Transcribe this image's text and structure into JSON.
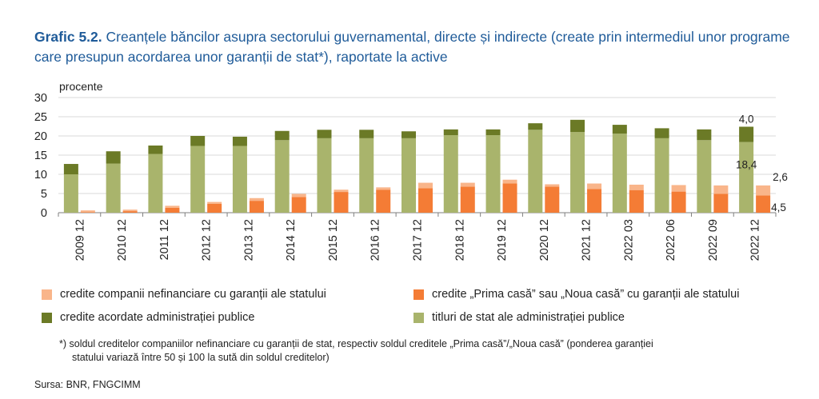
{
  "title": {
    "label": "Grafic 5.2.",
    "text": "Creanțele băncilor asupra sectorului guvernamental, directe și indirecte (create prin intermediul unor programe care presupun acordarea unor garanții de stat*), raportate la active"
  },
  "unit_label": "procente",
  "chart_data": {
    "type": "bar",
    "stacked": "two stacks per period",
    "categories": [
      "2009 12",
      "2010 12",
      "2011 12",
      "2012 12",
      "2013 12",
      "2014 12",
      "2015 12",
      "2016 12",
      "2017 12",
      "2018 12",
      "2019 12",
      "2020 12",
      "2021 12",
      "2022 03",
      "2022 06",
      "2022 09",
      "2022 12"
    ],
    "ylim": [
      0,
      30
    ],
    "yticks": [
      0,
      5,
      10,
      15,
      20,
      25,
      30
    ],
    "grid": true,
    "legend_position": "bottom",
    "series": [
      {
        "name": "titluri de stat ale administrației publice",
        "stack": "public",
        "color": "#a9b46c",
        "values": [
          10.0,
          12.8,
          15.3,
          17.4,
          17.4,
          18.9,
          19.4,
          19.4,
          19.4,
          20.2,
          20.2,
          21.6,
          21.0,
          20.6,
          19.4,
          18.9,
          18.4
        ]
      },
      {
        "name": "credite acordate administrației publice",
        "stack": "public",
        "color": "#6b7a26",
        "values": [
          2.7,
          3.2,
          2.2,
          2.6,
          2.4,
          2.4,
          2.2,
          2.2,
          1.8,
          1.5,
          1.5,
          1.7,
          3.2,
          2.3,
          2.6,
          2.8,
          4.0
        ]
      },
      {
        "name": "credite „Prima casă” sau „Noua casă” cu garanții ale statului",
        "stack": "guaranteed",
        "color": "#f47c35",
        "values": [
          0.1,
          0.4,
          1.3,
          2.3,
          3.1,
          4.1,
          5.4,
          6.0,
          6.4,
          6.8,
          7.6,
          6.8,
          6.2,
          5.9,
          5.5,
          4.9,
          4.5
        ]
      },
      {
        "name": "credite companii nefinanciare cu garanții ale statului",
        "stack": "guaranteed",
        "color": "#f9b58a",
        "values": [
          0.5,
          0.4,
          0.5,
          0.5,
          0.7,
          0.8,
          0.6,
          0.6,
          1.4,
          1.0,
          1.0,
          0.6,
          1.4,
          1.4,
          1.7,
          2.2,
          2.6
        ]
      }
    ],
    "annotations": [
      {
        "category": "2022 12",
        "series": "credite acordate administrației publice",
        "text": "4,0"
      },
      {
        "category": "2022 12",
        "series": "titluri de stat ale administrației publice",
        "text": "18,4"
      },
      {
        "category": "2022 12",
        "series": "credite companii nefinanciare cu garanții ale statului",
        "text": "2,6"
      },
      {
        "category": "2022 12",
        "series": "credite „Prima casă” sau „Noua casă” cu garanții ale statului",
        "text": "4,5"
      }
    ]
  },
  "legend": {
    "companii": "credite companii nefinanciare cu garanții ale statului",
    "prima_casa": "credite „Prima casă” sau „Noua casă” cu garanții ale statului",
    "credite_admin": "credite acordate administrației publice",
    "titluri": "titluri de stat ale administrației publice"
  },
  "colors": {
    "companii": "#f9b58a",
    "prima_casa": "#f47c35",
    "credite_admin": "#6b7a26",
    "titluri": "#a9b46c",
    "title": "#1f5b99"
  },
  "footnote": {
    "line1": "*) soldul creditelor companiilor nefinanciare cu garanții de stat, respectiv soldul creditele „Prima casă”/„Noua casă” (ponderea garanției",
    "line2": "statului variază între 50 și 100 la sută din soldul creditelor)"
  },
  "source": "Sursa: BNR, FNGCIMM"
}
